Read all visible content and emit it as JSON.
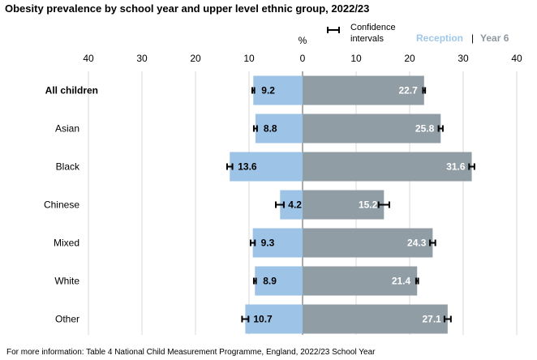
{
  "title": "Obesity prevalence by school  year and upper level ethnic group, 2022/23",
  "footnote": "For more information: Table 4 National Child Measurement Programme, England, 2022/23 School Year",
  "chart_data": {
    "type": "bar",
    "orientation": "horizontal-butterfly",
    "axis_unit_label": "%",
    "tick_labels_left": [
      "40",
      "30",
      "20",
      "10",
      "0"
    ],
    "tick_labels_right": [
      "10",
      "20",
      "30",
      "40"
    ],
    "xlim": [
      0,
      40
    ],
    "grid": true,
    "categories": [
      "All children",
      "Asian",
      "Black",
      "Chinese",
      "Mixed",
      "White",
      "Other"
    ],
    "bold_category": "All children",
    "series": [
      {
        "name": "Reception",
        "side": "left",
        "color": "#9dc3e6",
        "values": [
          9.2,
          8.8,
          13.6,
          4.2,
          9.3,
          8.9,
          10.7
        ],
        "labels": [
          "9.2",
          "8.8",
          "13.6",
          "4.2",
          "9.3",
          "8.9",
          "10.7"
        ],
        "ci_low": [
          9.0,
          8.5,
          13.1,
          3.5,
          8.9,
          8.7,
          10.1
        ],
        "ci_high": [
          9.4,
          9.1,
          14.1,
          5.0,
          9.7,
          9.1,
          11.3
        ]
      },
      {
        "name": "Year 6",
        "side": "right",
        "color": "#919da5",
        "values": [
          22.7,
          25.8,
          31.6,
          15.2,
          24.3,
          21.4,
          27.1
        ],
        "labels": [
          "22.7",
          "25.8",
          "31.6",
          "15.2",
          "24.3",
          "21.4",
          "27.1"
        ],
        "ci_low": [
          22.5,
          25.4,
          31.1,
          14.2,
          23.8,
          21.2,
          26.5
        ],
        "ci_high": [
          22.9,
          26.2,
          32.1,
          16.2,
          24.8,
          21.6,
          27.7
        ]
      }
    ],
    "legend": {
      "ci_label_line1": "Confidence",
      "ci_label_line2": "intervals",
      "reception_label": "Reception",
      "separator": "|",
      "year6_label": "Year 6",
      "placement": "top-right"
    }
  }
}
